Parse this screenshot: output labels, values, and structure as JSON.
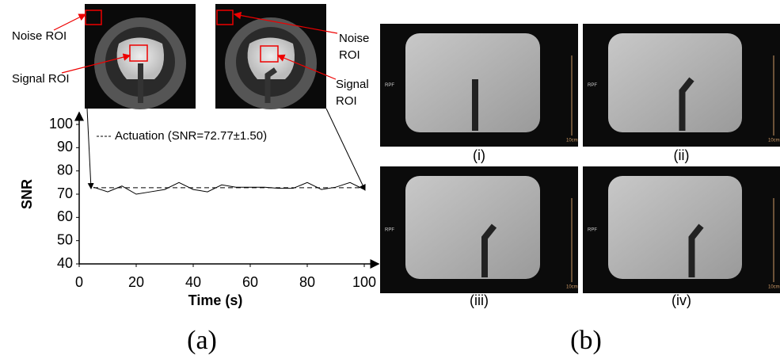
{
  "chart_data": {
    "type": "line",
    "x": [
      5,
      10,
      15,
      20,
      25,
      30,
      35,
      40,
      45,
      50,
      55,
      60,
      65,
      70,
      75,
      80,
      85,
      90,
      95,
      100
    ],
    "series": [
      {
        "color": "#000000",
        "values": [
          73,
          71,
          73.5,
          70,
          71,
          72,
          75,
          72,
          71,
          74,
          73,
          73,
          73,
          72.5,
          72.5,
          75,
          72,
          73,
          75,
          72
        ]
      },
      {
        "name": "Actuation (SNR=72.77±1.50)",
        "color": "#000000",
        "dashed": true,
        "values": [
          72.77,
          72.77,
          72.77,
          72.77,
          72.77,
          72.77,
          72.77,
          72.77,
          72.77,
          72.77,
          72.77,
          72.77,
          72.77,
          72.77,
          72.77,
          72.77,
          72.77,
          72.77,
          72.77,
          72.77
        ]
      }
    ],
    "xlabel": "Time (s)",
    "ylabel": "SNR",
    "xlim": [
      0,
      100
    ],
    "xticks": [
      0,
      20,
      40,
      60,
      80,
      100
    ],
    "ylim": [
      40,
      100
    ],
    "yticks": [
      40,
      50,
      60,
      70,
      80,
      90,
      100
    ]
  },
  "roi_labels": {
    "noise": "Noise ROI",
    "signal": "Signal ROI"
  },
  "panel_a": "(a)",
  "panel_b": "(b)",
  "images": [
    {
      "caption": "(i)"
    },
    {
      "caption": "(ii)"
    },
    {
      "caption": "(iii)"
    },
    {
      "caption": "(iv)"
    }
  ],
  "image_marker": "RPF",
  "image_scale": "10cm"
}
